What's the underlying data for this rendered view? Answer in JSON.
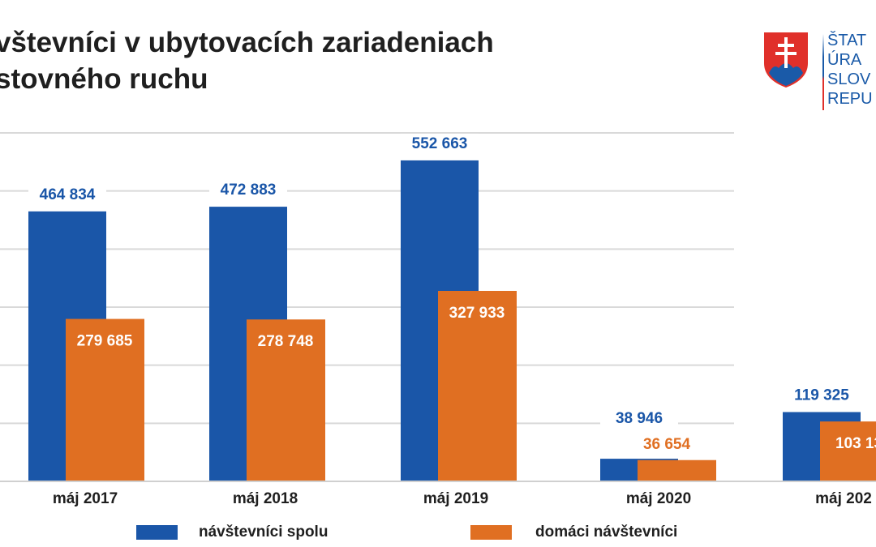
{
  "title_lines": [
    "vštevníci v ubytovacích zariadeniach",
    "stovného ruchu"
  ],
  "logo": {
    "text_lines": [
      "ŠTAT",
      "ÚRA",
      "SLOV",
      "REPU"
    ]
  },
  "colors": {
    "series_total": "#1a56a8",
    "series_domestic": "#e06f22",
    "grid": "#d9d9d9"
  },
  "chart_data": {
    "type": "bar",
    "categories": [
      "máj 2017",
      "máj 2018",
      "máj 2019",
      "máj 2020",
      "máj 202"
    ],
    "series": [
      {
        "name": "návštevníci spolu",
        "values": [
          464834,
          472883,
          552663,
          38946,
          119325
        ],
        "labels": [
          "464 834",
          "472 883",
          "552 663",
          "38 946",
          "119 325"
        ]
      },
      {
        "name": "domáci návštevníci",
        "values": [
          279685,
          278748,
          327933,
          36654,
          103130
        ],
        "labels": [
          "279 685",
          "278 748",
          "327 933",
          "36 654",
          "103 13"
        ]
      }
    ],
    "ylim": [
      0,
      600000
    ],
    "grid": true,
    "legend": "bottom"
  }
}
